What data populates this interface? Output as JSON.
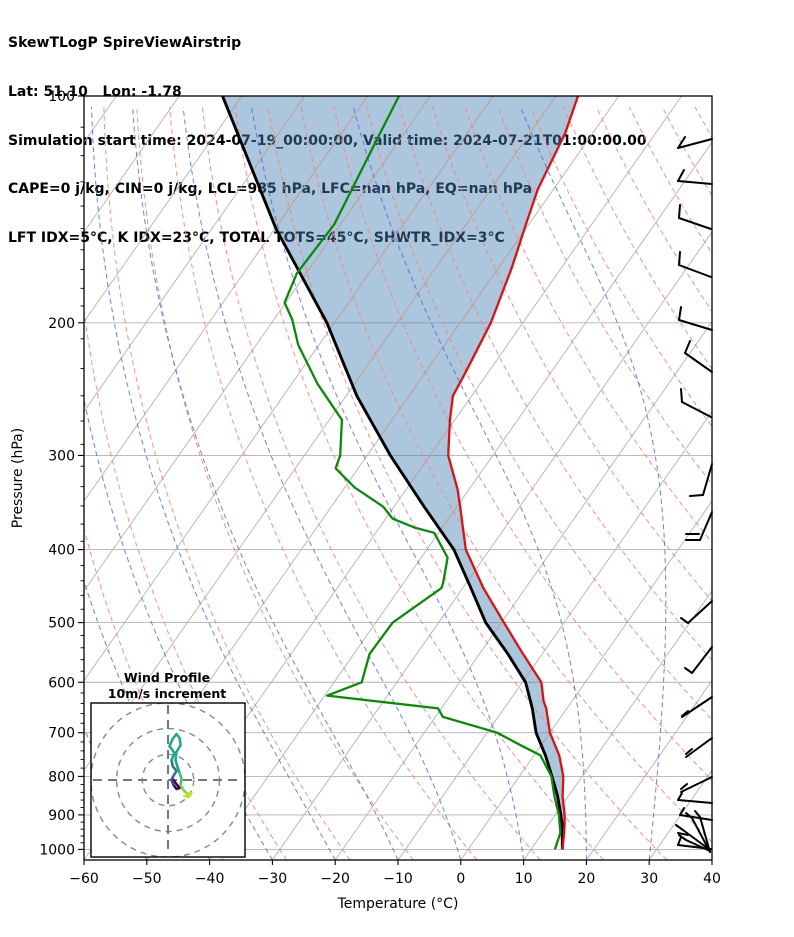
{
  "header": {
    "title": "SkewTLogP SpireViewAirstrip",
    "location": "Lat: 51.10   Lon: -1.78",
    "times": "Simulation start time: 2024-07-19_00:00:00, Valid time: 2024-07-21T01:00:00.00",
    "stability1": "CAPE=0 j/kg, CIN=0 j/kg, LCL=985 hPa, LFC=nan hPa, EQ=nan hPa",
    "stability2": "LFT IDX=5°C, K IDX=23°C, TOTAL TOTS=45°C, SHWTR_IDX=3°C"
  },
  "chart_data": {
    "type": "line",
    "subtype": "skew-t-log-p",
    "title": "SkewTLogP SpireViewAirstrip",
    "xlabel": "Temperature (°C)",
    "ylabel": "Pressure (hPa)",
    "xlim": [
      -60,
      40
    ],
    "ylim": [
      1033,
      100
    ],
    "x_ticks": [
      -60,
      -50,
      -40,
      -30,
      -20,
      -10,
      0,
      10,
      20,
      30,
      40
    ],
    "y_ticks": [
      100,
      200,
      300,
      400,
      500,
      600,
      700,
      800,
      900,
      1000
    ],
    "y_minor_ticks": [
      110,
      120,
      130,
      140,
      150,
      160,
      170,
      180,
      190,
      210,
      230,
      250,
      270,
      290,
      310,
      330,
      350,
      370,
      390,
      420,
      440,
      460,
      480,
      520,
      540,
      560,
      580,
      620,
      640,
      660,
      680,
      720,
      740,
      760,
      780,
      820,
      840,
      860,
      880,
      920,
      940,
      960,
      980
    ],
    "grid": true,
    "legend": "none",
    "series": [
      {
        "name": "temperature",
        "color": "#dd1111",
        "units": "degC",
        "points": [
          [
            1000,
            15.0
          ],
          [
            950,
            13.4
          ],
          [
            925,
            12.5
          ],
          [
            900,
            11.5
          ],
          [
            850,
            9.1
          ],
          [
            800,
            7.0
          ],
          [
            750,
            4.0
          ],
          [
            700,
            0.0
          ],
          [
            650,
            -3.3
          ],
          [
            636,
            -4.5
          ],
          [
            600,
            -7.0
          ],
          [
            550,
            -13.1
          ],
          [
            500,
            -19.6
          ],
          [
            450,
            -26.7
          ],
          [
            400,
            -33.8
          ],
          [
            350,
            -39.6
          ],
          [
            333,
            -41.8
          ],
          [
            300,
            -47.1
          ],
          [
            269,
            -50.8
          ],
          [
            250,
            -53.0
          ],
          [
            233,
            -53.6
          ],
          [
            200,
            -55.1
          ],
          [
            169,
            -57.9
          ],
          [
            148,
            -60.5
          ],
          [
            133,
            -62.5
          ],
          [
            112,
            -64.4
          ],
          [
            100,
            -66.5
          ]
        ]
      },
      {
        "name": "dewpoint",
        "color": "#0e870e",
        "units": "degC",
        "points": [
          [
            1000,
            13.8
          ],
          [
            950,
            12.8
          ],
          [
            925,
            11.7
          ],
          [
            900,
            10.6
          ],
          [
            850,
            7.8
          ],
          [
            800,
            5.1
          ],
          [
            750,
            1.0
          ],
          [
            725,
            -3.7
          ],
          [
            700,
            -8.4
          ],
          [
            667,
            -18.8
          ],
          [
            650,
            -20.5
          ],
          [
            625,
            -39.6
          ],
          [
            600,
            -35.6
          ],
          [
            550,
            -37.5
          ],
          [
            500,
            -37.3
          ],
          [
            450,
            -33.4
          ],
          [
            443,
            -33.7
          ],
          [
            410,
            -35.8
          ],
          [
            380,
            -40.7
          ],
          [
            374,
            -44.4
          ],
          [
            364,
            -48.9
          ],
          [
            351,
            -51.7
          ],
          [
            331,
            -58.4
          ],
          [
            312,
            -63.6
          ],
          [
            300,
            -64.3
          ],
          [
            269,
            -68.0
          ],
          [
            241,
            -75.9
          ],
          [
            214,
            -83.3
          ],
          [
            198,
            -87.1
          ],
          [
            188,
            -90.2
          ],
          [
            172,
            -91.5
          ],
          [
            148,
            -91.0
          ],
          [
            115,
            -93.6
          ],
          [
            100,
            -95.0
          ]
        ]
      },
      {
        "name": "parcel_profile",
        "color": "#000000",
        "units": "degC",
        "points": [
          [
            1000,
            15.0
          ],
          [
            950,
            13.1
          ],
          [
            925,
            12.1
          ],
          [
            900,
            10.9
          ],
          [
            850,
            8.3
          ],
          [
            800,
            5.2
          ],
          [
            750,
            1.8
          ],
          [
            700,
            -2.2
          ],
          [
            650,
            -5.5
          ],
          [
            600,
            -9.5
          ],
          [
            550,
            -15.5
          ],
          [
            500,
            -22.5
          ],
          [
            450,
            -28.7
          ],
          [
            400,
            -35.7
          ],
          [
            350,
            -45.4
          ],
          [
            300,
            -56.3
          ],
          [
            250,
            -68.3
          ],
          [
            200,
            -81.2
          ],
          [
            150,
            -99.8
          ],
          [
            100,
            -123.1
          ]
        ]
      }
    ],
    "shaded_region": {
      "between": [
        "parcel_profile",
        "temperature"
      ],
      "color": "rgba(70,130,180,0.45)"
    },
    "background_lines": {
      "isotherms": {
        "from": -160,
        "to": 40,
        "step": 10
      },
      "dry_adiabats_theta_c": {
        "from": -40,
        "to": 240,
        "step": 10
      },
      "moist_adiabats_t0_c": {
        "from": -160,
        "to": 40,
        "step": 10
      }
    },
    "wind_barbs": [
      {
        "pressure": 114,
        "segs": [
          [
            [
              712,
              139
            ],
            [
              678,
              148
            ]
          ],
          [
            [
              678,
              148
            ],
            [
              685,
              137
            ]
          ]
        ]
      },
      {
        "pressure": 131,
        "segs": [
          [
            [
              712,
              184
            ],
            [
              678,
              181
            ]
          ],
          [
            [
              678,
              181
            ],
            [
              684,
              170
            ]
          ]
        ]
      },
      {
        "pressure": 150,
        "segs": [
          [
            [
              711,
              229
            ],
            [
              679,
              218
            ]
          ],
          [
            [
              679,
              218
            ],
            [
              680,
              205
            ]
          ]
        ]
      },
      {
        "pressure": 174,
        "segs": [
          [
            [
              711,
              277
            ],
            [
              679,
              265
            ]
          ],
          [
            [
              679,
              265
            ],
            [
              680,
              252
            ]
          ]
        ]
      },
      {
        "pressure": 204,
        "segs": [
          [
            [
              712,
              330
            ],
            [
              679,
              320
            ]
          ],
          [
            [
              679,
              320
            ],
            [
              681,
              307
            ]
          ]
        ]
      },
      {
        "pressure": 233,
        "segs": [
          [
            [
              712,
              372
            ],
            [
              685,
              353
            ]
          ],
          [
            [
              685,
              353
            ],
            [
              690,
              341
            ]
          ]
        ]
      },
      {
        "pressure": 267,
        "segs": [
          [
            [
              711,
              417
            ],
            [
              682,
              402
            ]
          ],
          [
            [
              682,
              402
            ],
            [
              681,
              389
            ]
          ]
        ]
      },
      {
        "pressure": 308,
        "segs": [
          [
            [
              712,
              464
            ],
            [
              703,
              495
            ]
          ],
          [
            [
              703,
              495
            ],
            [
              690,
              496
            ]
          ]
        ]
      },
      {
        "pressure": 357,
        "segs": [
          [
            [
              712,
              512
            ],
            [
              700,
              540
            ]
          ],
          [
            [
              700,
              540
            ],
            [
              686,
              540
            ]
          ],
          [
            [
              699,
              534
            ],
            [
              686,
              534
            ]
          ]
        ]
      },
      {
        "pressure": 468,
        "segs": [
          [
            [
              712,
              601
            ],
            [
              688,
              623
            ]
          ],
          [
            [
              688,
              623
            ],
            [
              681,
              618
            ]
          ]
        ]
      },
      {
        "pressure": 539,
        "segs": [
          [
            [
              712,
              647
            ],
            [
              692,
              673
            ]
          ],
          [
            [
              692,
              673
            ],
            [
              685,
              668
            ]
          ]
        ]
      },
      {
        "pressure": 629,
        "segs": [
          [
            [
              712,
              697
            ],
            [
              682,
              717
            ]
          ],
          [
            [
              682,
              716
            ],
            [
              688,
              711
            ]
          ]
        ]
      },
      {
        "pressure": 713,
        "segs": [
          [
            [
              712,
              738
            ],
            [
              686,
              757
            ]
          ],
          [
            [
              686,
              754
            ],
            [
              692,
              749
            ]
          ]
        ]
      },
      {
        "pressure": 800,
        "segs": [
          [
            [
              712,
              777
            ],
            [
              681,
              792
            ]
          ],
          [
            [
              681,
              789
            ],
            [
              687,
              784
            ]
          ]
        ]
      },
      {
        "pressure": 866,
        "segs": [
          [
            [
              712,
              803
            ],
            [
              678,
              800
            ]
          ],
          [
            [
              678,
              800
            ],
            [
              682,
              793
            ]
          ]
        ]
      },
      {
        "pressure": 911,
        "segs": [
          [
            [
              712,
              820
            ],
            [
              680,
              815
            ]
          ],
          [
            [
              680,
              815
            ],
            [
              684,
              808
            ]
          ]
        ]
      },
      {
        "pressure": 985,
        "segs": [
          [
            [
              710,
              852
            ],
            [
              692,
              818
            ]
          ],
          [
            [
              692,
              818
            ],
            [
              686,
              813
            ]
          ]
        ]
      },
      {
        "pressure": 990,
        "segs": [
          [
            [
              710,
              852
            ],
            [
              700,
              817
            ]
          ],
          [
            [
              700,
              817
            ],
            [
              695,
              811
            ]
          ]
        ]
      },
      {
        "pressure": 995,
        "segs": [
          [
            [
              710,
              850
            ],
            [
              683,
              830
            ]
          ],
          [
            [
              683,
              830
            ],
            [
              676,
              825
            ]
          ],
          [
            [
              678,
              833
            ],
            [
              688,
              835
            ]
          ]
        ]
      },
      {
        "pressure": 1000,
        "segs": [
          [
            [
              710,
              851
            ],
            [
              686,
              840
            ]
          ],
          [
            [
              686,
              840
            ],
            [
              679,
              835
            ]
          ]
        ]
      },
      {
        "pressure": 1005,
        "segs": [
          [
            [
              711,
              849
            ],
            [
              678,
              845
            ]
          ],
          [
            [
              678,
              845
            ],
            [
              681,
              837
            ]
          ]
        ]
      }
    ]
  },
  "inset": {
    "title_line1": "Wind Profile",
    "title_line2": "10m/s increment",
    "ring_speeds_ms": [
      10,
      20,
      30
    ],
    "trace_segments": [
      {
        "color": "#440154",
        "uv": [
          [
            2.1,
            0
          ],
          [
            3.3,
            -1.6
          ],
          [
            4.5,
            -3.1
          ],
          [
            3.3,
            -3.5
          ],
          [
            2.1,
            -1.9
          ]
        ]
      },
      {
        "color": "#414487",
        "uv": [
          [
            2.1,
            -1.9
          ],
          [
            1.4,
            0
          ],
          [
            2.1,
            1.6
          ]
        ]
      },
      {
        "color": "#2a788e",
        "uv": [
          [
            2.1,
            1.6
          ],
          [
            3.3,
            3.5
          ],
          [
            1.8,
            5.4
          ],
          [
            1.4,
            7.8
          ]
        ]
      },
      {
        "color": "#22a884",
        "uv": [
          [
            1.4,
            7.8
          ],
          [
            2.5,
            10.5
          ],
          [
            0.6,
            13.2
          ],
          [
            1.8,
            16
          ],
          [
            3.3,
            17.9
          ],
          [
            4.5,
            16.3
          ],
          [
            4.9,
            13.6
          ],
          [
            3.3,
            10.9
          ],
          [
            2.9,
            7.8
          ],
          [
            3.7,
            5.1
          ],
          [
            4.5,
            2.7
          ]
        ]
      },
      {
        "color": "#44bf70",
        "uv": [
          [
            4.5,
            2.7
          ],
          [
            5.3,
            0.4
          ],
          [
            4.9,
            -1.9
          ]
        ]
      },
      {
        "color": "#7ad151",
        "uv": [
          [
            4.9,
            -1.9
          ],
          [
            6,
            -3.9
          ],
          [
            7.6,
            -5.4
          ]
        ]
      },
      {
        "color": "#bddf26",
        "uv": [
          [
            7.6,
            -5.4
          ],
          [
            9.1,
            -5.1
          ],
          [
            8,
            -6.6
          ],
          [
            6.4,
            -6.2
          ]
        ]
      }
    ]
  },
  "colors": {
    "temperature_line": "#dd1111",
    "dewpoint_line": "#0e870e",
    "parcel_line": "#000000",
    "cin_fill": "rgba(70,130,180,0.45)",
    "isotherm_gray": "#b2b2b2",
    "isotherm_over_fill": "#c8a091",
    "dry_adiabat": "#f37d7d",
    "moist_adiabat": "#4f5fd9",
    "grid": "#b2b2b2",
    "barb": "#000000",
    "hodo_ring": "#888888"
  }
}
